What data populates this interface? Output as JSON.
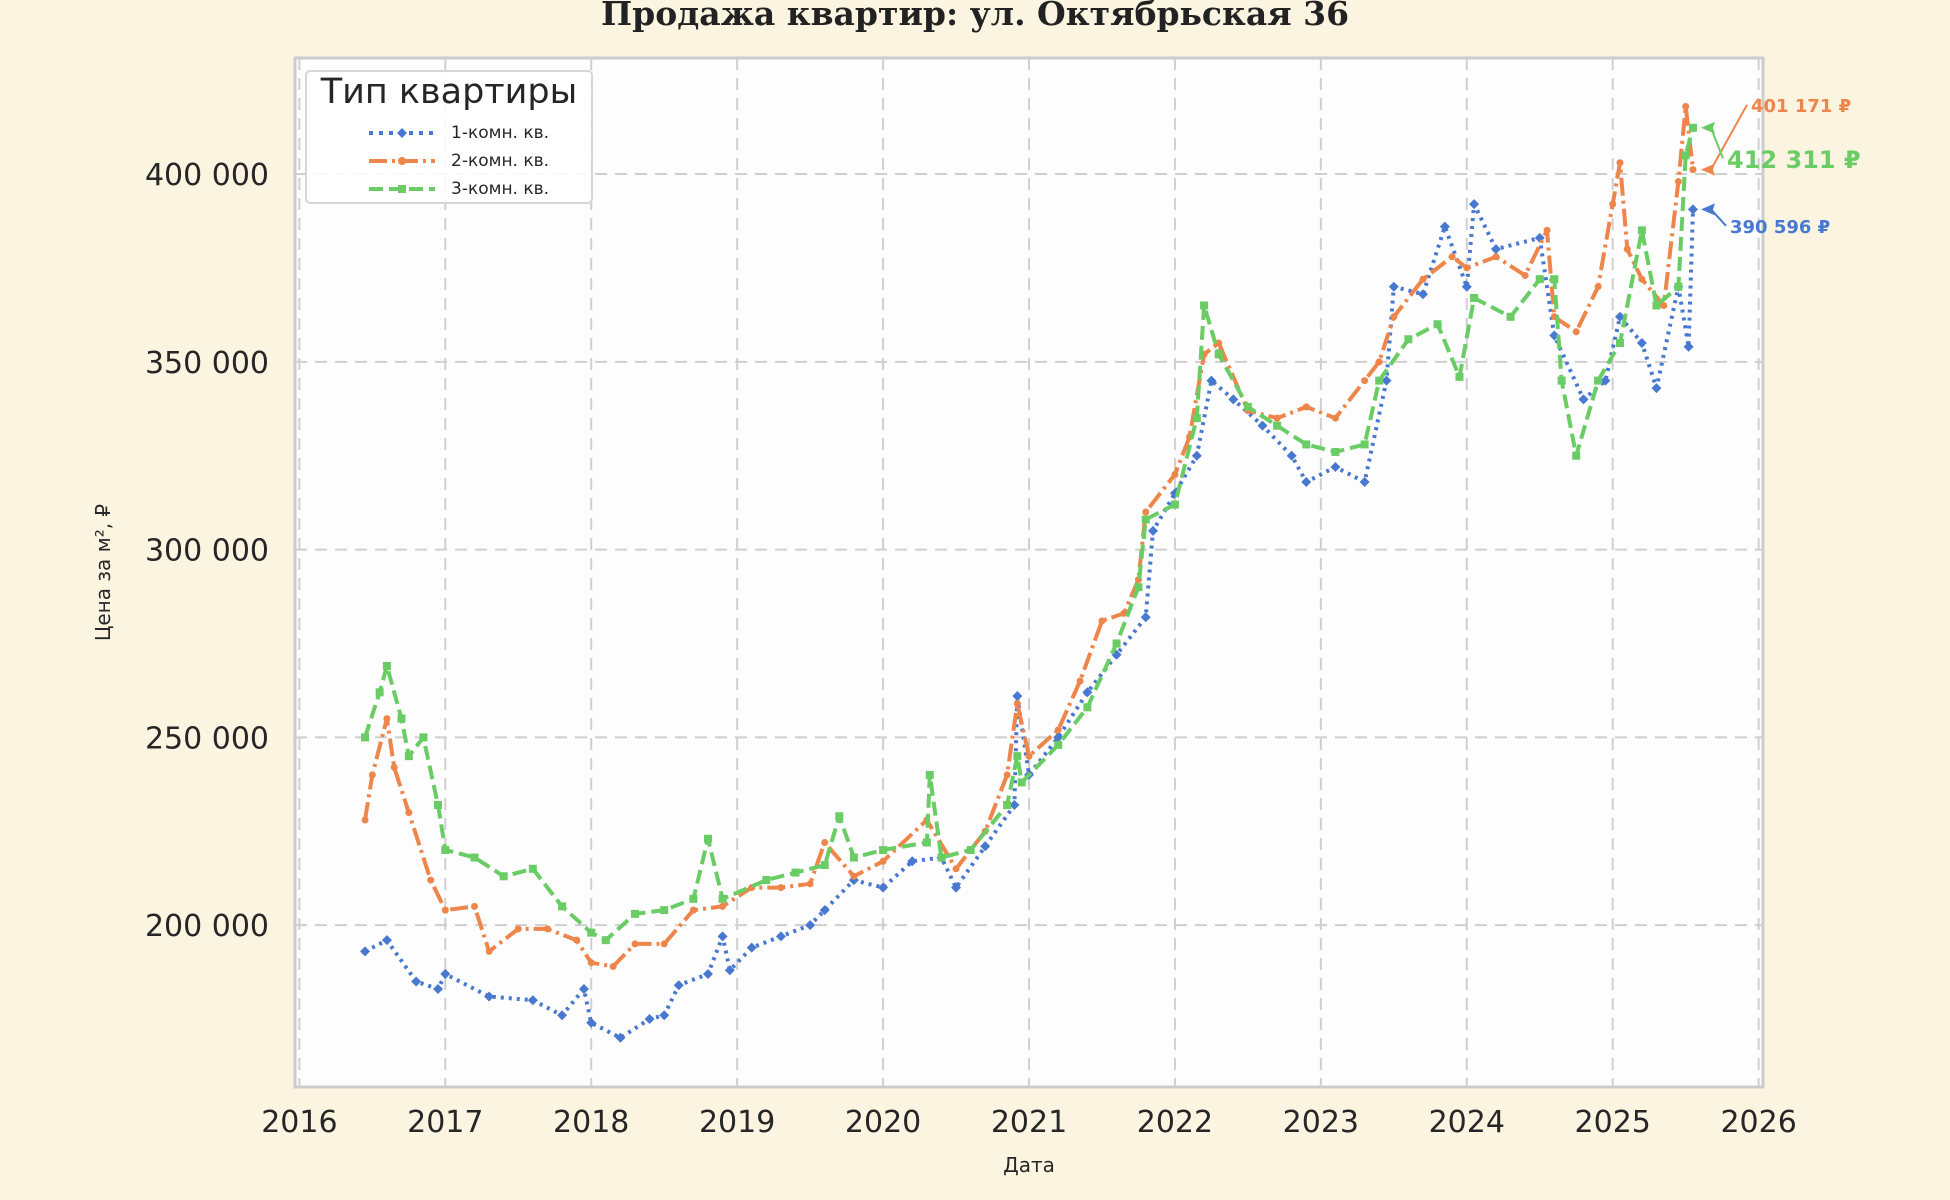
{
  "chart_data": {
    "type": "line",
    "title": "Продажа квартир: ул. Октябрьская 36",
    "xlabel": "Дата",
    "ylabel": "Цена за м², ₽",
    "xlim": [
      2015.97,
      2026.03
    ],
    "ylim": [
      156900,
      430900
    ],
    "xticks": [
      2016,
      2017,
      2018,
      2019,
      2020,
      2021,
      2022,
      2023,
      2024,
      2025,
      2026
    ],
    "yticks": [
      200000,
      250000,
      300000,
      350000,
      400000
    ],
    "ytick_labels": [
      "200 000",
      "250 000",
      "300 000",
      "350 000",
      "400 000"
    ],
    "grid": true,
    "legend": {
      "title": "Тип квартиры",
      "placement": "top-left"
    },
    "series": [
      {
        "name": "1-комн. кв.",
        "color": "#4878d0",
        "style": "dotted",
        "marker": "diamond",
        "x": [
          2016.45,
          2016.6,
          2016.8,
          2016.95,
          2017.0,
          2017.3,
          2017.6,
          2017.8,
          2017.95,
          2018.0,
          2018.2,
          2018.4,
          2018.5,
          2018.6,
          2018.8,
          2018.9,
          2018.95,
          2019.1,
          2019.3,
          2019.5,
          2019.6,
          2019.8,
          2020.0,
          2020.2,
          2020.4,
          2020.5,
          2020.7,
          2020.9,
          2020.92,
          2021.0,
          2021.2,
          2021.4,
          2021.6,
          2021.8,
          2021.85,
          2022.0,
          2022.15,
          2022.25,
          2022.4,
          2022.6,
          2022.8,
          2022.9,
          2023.1,
          2023.3,
          2023.45,
          2023.5,
          2023.7,
          2023.85,
          2024.0,
          2024.05,
          2024.2,
          2024.5,
          2024.6,
          2024.8,
          2024.95,
          2025.05,
          2025.2,
          2025.3,
          2025.45,
          2025.52,
          2025.55
        ],
        "y": [
          193000,
          196000,
          185000,
          183000,
          187000,
          181000,
          180000,
          176000,
          183000,
          174000,
          170000,
          175000,
          176000,
          184000,
          187000,
          197000,
          188000,
          194000,
          197000,
          200000,
          204000,
          212000,
          210000,
          217000,
          218000,
          210000,
          221000,
          232000,
          261000,
          240000,
          250000,
          262000,
          272000,
          282000,
          305000,
          315000,
          325000,
          345000,
          340000,
          333000,
          325000,
          318000,
          322000,
          318000,
          345000,
          370000,
          368000,
          386000,
          370000,
          392000,
          380000,
          383000,
          357000,
          340000,
          345000,
          362000,
          355000,
          343000,
          370000,
          354000,
          390596
        ]
      },
      {
        "name": "2-комн. кв.",
        "color": "#ee854a",
        "style": "dashdot",
        "marker": "circle",
        "x": [
          2016.45,
          2016.5,
          2016.6,
          2016.65,
          2016.75,
          2016.9,
          2017.0,
          2017.2,
          2017.3,
          2017.5,
          2017.7,
          2017.9,
          2018.0,
          2018.15,
          2018.3,
          2018.5,
          2018.7,
          2018.9,
          2019.1,
          2019.3,
          2019.5,
          2019.6,
          2019.8,
          2020.0,
          2020.3,
          2020.5,
          2020.7,
          2020.85,
          2020.92,
          2021.0,
          2021.2,
          2021.35,
          2021.5,
          2021.65,
          2021.75,
          2021.8,
          2022.0,
          2022.1,
          2022.2,
          2022.3,
          2022.5,
          2022.7,
          2022.9,
          2023.1,
          2023.3,
          2023.4,
          2023.5,
          2023.7,
          2023.9,
          2024.0,
          2024.2,
          2024.4,
          2024.55,
          2024.6,
          2024.75,
          2024.9,
          2025.0,
          2025.05,
          2025.1,
          2025.2,
          2025.35,
          2025.45,
          2025.5,
          2025.55
        ],
        "y": [
          228000,
          240000,
          255000,
          242000,
          230000,
          212000,
          204000,
          205000,
          193000,
          199000,
          199000,
          196000,
          190000,
          189000,
          195000,
          195000,
          204000,
          205000,
          210000,
          210000,
          211000,
          222000,
          213000,
          217000,
          228000,
          215000,
          225000,
          240000,
          259000,
          245000,
          252000,
          265000,
          281000,
          283000,
          292000,
          310000,
          320000,
          330000,
          352000,
          355000,
          337000,
          335000,
          338000,
          335000,
          345000,
          350000,
          362000,
          372000,
          378000,
          375000,
          378000,
          373000,
          385000,
          362000,
          358000,
          370000,
          392000,
          403000,
          380000,
          372000,
          365000,
          398000,
          418000,
          401171
        ]
      },
      {
        "name": "3-комн. кв.",
        "color": "#6acc64",
        "style": "dashed",
        "marker": "square",
        "x": [
          2016.45,
          2016.55,
          2016.6,
          2016.7,
          2016.75,
          2016.85,
          2016.95,
          2017.0,
          2017.2,
          2017.4,
          2017.6,
          2017.8,
          2018.0,
          2018.1,
          2018.3,
          2018.5,
          2018.7,
          2018.8,
          2018.9,
          2019.2,
          2019.4,
          2019.6,
          2019.7,
          2019.8,
          2020.0,
          2020.3,
          2020.32,
          2020.4,
          2020.6,
          2020.85,
          2020.92,
          2020.95,
          2021.2,
          2021.4,
          2021.6,
          2021.75,
          2021.8,
          2022.0,
          2022.15,
          2022.2,
          2022.3,
          2022.5,
          2022.7,
          2022.9,
          2023.1,
          2023.3,
          2023.4,
          2023.6,
          2023.8,
          2023.95,
          2024.05,
          2024.3,
          2024.5,
          2024.6,
          2024.65,
          2024.75,
          2024.9,
          2025.05,
          2025.2,
          2025.3,
          2025.45,
          2025.5,
          2025.55
        ],
        "y": [
          250000,
          262000,
          269000,
          255000,
          245000,
          250000,
          232000,
          220000,
          218000,
          213000,
          215000,
          205000,
          198000,
          196000,
          203000,
          204000,
          207000,
          223000,
          207000,
          212000,
          214000,
          216000,
          229000,
          218000,
          220000,
          222000,
          240000,
          218000,
          220000,
          232000,
          245000,
          238000,
          248000,
          258000,
          275000,
          290000,
          308000,
          312000,
          335000,
          365000,
          352000,
          338000,
          333000,
          328000,
          326000,
          328000,
          345000,
          356000,
          360000,
          346000,
          367000,
          362000,
          372000,
          372000,
          345000,
          325000,
          345000,
          355000,
          385000,
          365000,
          370000,
          405000,
          412311
        ]
      }
    ],
    "annotations": [
      {
        "text": "390 596 ₽",
        "series": "1-комн. кв.",
        "x": 2025.55,
        "y": 390596,
        "color": "#4878d0"
      },
      {
        "text": "401 171 ₽",
        "series": "2-комн. кв.",
        "x": 2025.55,
        "y": 401171,
        "color": "#ee854a"
      },
      {
        "text": "412 311 ₽",
        "series": "3-комн. кв.",
        "x": 2025.55,
        "y": 412311,
        "color": "#6acc64"
      }
    ]
  }
}
